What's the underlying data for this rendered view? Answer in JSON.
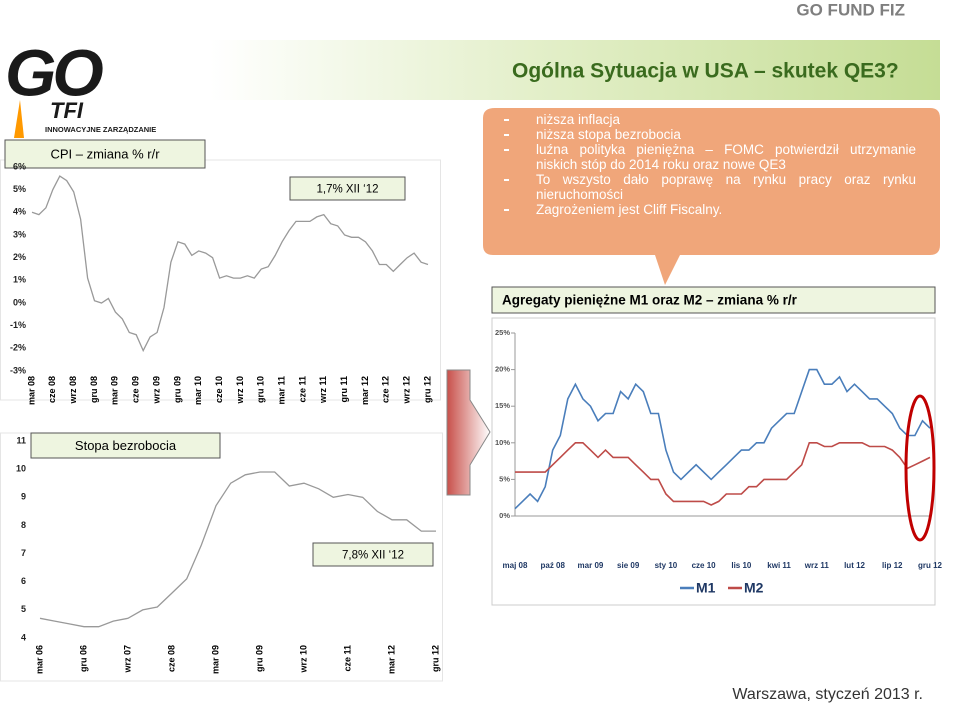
{
  "header": {
    "brand": "GO FUND FIZ",
    "title": "Ogólna Sytuacja w USA – skutek QE3?"
  },
  "logo": {
    "name": "GO",
    "sub": "TFI",
    "tagline": "INNOWACYJNE ZARZĄDZANIE"
  },
  "bullets": [
    "niższa inflacja",
    "niższa stopa bezrobocia",
    "luźna polityka pieniężna – FOMC potwierdził utrzymanie niskich stóp do 2014 roku oraz nowe QE3",
    "To wszysto dało poprawę na rynku pracy oraz rynku nieruchomości",
    "Zagrożeniem jest Cliff Fiscalny."
  ],
  "footer": "Warszawa, styczeń 2013 r.",
  "chart_data": [
    {
      "type": "line",
      "title": "CPI – zmiana % r/r",
      "annotation": "1,7%  XII ‘12",
      "color": "#999999",
      "categories": [
        "mar 08",
        null,
        null,
        "cze 08",
        null,
        null,
        "wrz 08",
        null,
        null,
        "gru 08",
        null,
        null,
        "mar 09",
        null,
        null,
        "cze 09",
        null,
        null,
        "wrz 09",
        null,
        null,
        "gru 09",
        null,
        null,
        "mar 10",
        null,
        null,
        "cze 10",
        null,
        null,
        "wrz 10",
        null,
        null,
        "gru 10",
        null,
        null,
        "mar 11",
        null,
        null,
        "cze 11",
        null,
        null,
        "wrz 11",
        null,
        null,
        "gru 11",
        null,
        null,
        "mar 12",
        null,
        null,
        "cze 12",
        null,
        null,
        "wrz 12",
        null,
        null,
        "gru 12"
      ],
      "values": [
        4.0,
        3.9,
        4.2,
        5.0,
        5.6,
        5.4,
        4.9,
        3.7,
        1.1,
        0.1,
        0.0,
        0.2,
        -0.4,
        -0.7,
        -1.3,
        -1.4,
        -2.1,
        -1.5,
        -1.3,
        -0.2,
        1.8,
        2.7,
        2.6,
        2.1,
        2.3,
        2.2,
        2.0,
        1.1,
        1.2,
        1.1,
        1.1,
        1.2,
        1.1,
        1.5,
        1.6,
        2.1,
        2.7,
        3.2,
        3.6,
        3.6,
        3.6,
        3.8,
        3.9,
        3.5,
        3.4,
        3.0,
        2.9,
        2.9,
        2.7,
        2.3,
        1.7,
        1.7,
        1.4,
        1.7,
        2.0,
        2.2,
        1.8,
        1.7
      ],
      "ylim": [
        -3,
        6
      ],
      "yticks": [
        {
          "value": -3,
          "label": "-3%"
        },
        {
          "value": -2,
          "label": "-2%"
        },
        {
          "value": -1,
          "label": "-1%"
        },
        {
          "value": 0,
          "label": "0%"
        },
        {
          "value": 1,
          "label": "1%"
        },
        {
          "value": 2,
          "label": "2%"
        },
        {
          "value": 3,
          "label": "3%"
        },
        {
          "value": 4,
          "label": "4%"
        },
        {
          "value": 5,
          "label": "5%"
        },
        {
          "value": 6,
          "label": "6%"
        }
      ]
    },
    {
      "type": "line",
      "title": "Stopa bezrobocia",
      "annotation": "7,8%  XII ‘12",
      "color": "#999999",
      "categories": [
        "mar 06",
        null,
        null,
        "gru 06",
        null,
        null,
        "wrz 07",
        null,
        null,
        "cze 08",
        null,
        null,
        "mar 09",
        null,
        null,
        "gru 09",
        null,
        null,
        "wrz 10",
        null,
        null,
        "cze 11",
        null,
        null,
        "mar 12",
        null,
        null,
        "gru 12"
      ],
      "values": [
        4.7,
        4.6,
        4.5,
        4.4,
        4.4,
        4.6,
        4.7,
        5.0,
        5.1,
        5.6,
        6.1,
        7.3,
        8.7,
        9.5,
        9.8,
        9.9,
        9.9,
        9.4,
        9.5,
        9.3,
        9.0,
        9.1,
        9.0,
        8.5,
        8.2,
        8.2,
        7.8,
        7.8
      ],
      "ylim": [
        4,
        11
      ],
      "yticks": [
        4,
        5,
        6,
        7,
        8,
        9,
        10,
        11
      ]
    },
    {
      "type": "line",
      "title": "Agregaty pieniężne M1 oraz M2 – zmiana % r/r",
      "categories": [
        "maj 08",
        null,
        null,
        null,
        null,
        "paź 08",
        null,
        null,
        null,
        null,
        "mar 09",
        null,
        null,
        null,
        null,
        "sie 09",
        null,
        null,
        null,
        null,
        "sty 10",
        null,
        null,
        null,
        null,
        "cze 10",
        null,
        null,
        null,
        null,
        "lis 10",
        null,
        null,
        null,
        null,
        "kwi 11",
        null,
        null,
        null,
        null,
        "wrz 11",
        null,
        null,
        null,
        null,
        "lut 12",
        null,
        null,
        null,
        null,
        "lip 12",
        null,
        null,
        null,
        null,
        "gru 12"
      ],
      "series": [
        {
          "name": "M1",
          "color": "#4a7ebb",
          "values": [
            1,
            2,
            3,
            2,
            4,
            9,
            11,
            16,
            18,
            16,
            15,
            13,
            14,
            14,
            17,
            16,
            18,
            17,
            14,
            14,
            9,
            6,
            5,
            6,
            7,
            6,
            5,
            6,
            7,
            8,
            9,
            9,
            10,
            10,
            12,
            13,
            14,
            14,
            17,
            20,
            20,
            18,
            18,
            19,
            17,
            18,
            17,
            16,
            16,
            15,
            14,
            12,
            11,
            11,
            13,
            12
          ]
        },
        {
          "name": "M2",
          "color": "#be4b48",
          "values": [
            6,
            6,
            6,
            6,
            6,
            7,
            8,
            9,
            10,
            10,
            9,
            8,
            9,
            8,
            8,
            8,
            7,
            6,
            5,
            5,
            3,
            2,
            2,
            2,
            2,
            2,
            1.5,
            2,
            3,
            3,
            3,
            4,
            4,
            5,
            5,
            5,
            5,
            6,
            7,
            10,
            10,
            9.5,
            9.5,
            10,
            10,
            10,
            10,
            9.5,
            9.5,
            9.5,
            9,
            8,
            6.5,
            7,
            7.5,
            8
          ]
        }
      ],
      "ylim": [
        0,
        25
      ],
      "yticks": [
        {
          "value": 0,
          "label": "0%"
        },
        {
          "value": 5,
          "label": "5%"
        },
        {
          "value": 10,
          "label": "10%"
        },
        {
          "value": 15,
          "label": "15%"
        },
        {
          "value": 20,
          "label": "20%"
        },
        {
          "value": 25,
          "label": "25%"
        }
      ]
    }
  ]
}
